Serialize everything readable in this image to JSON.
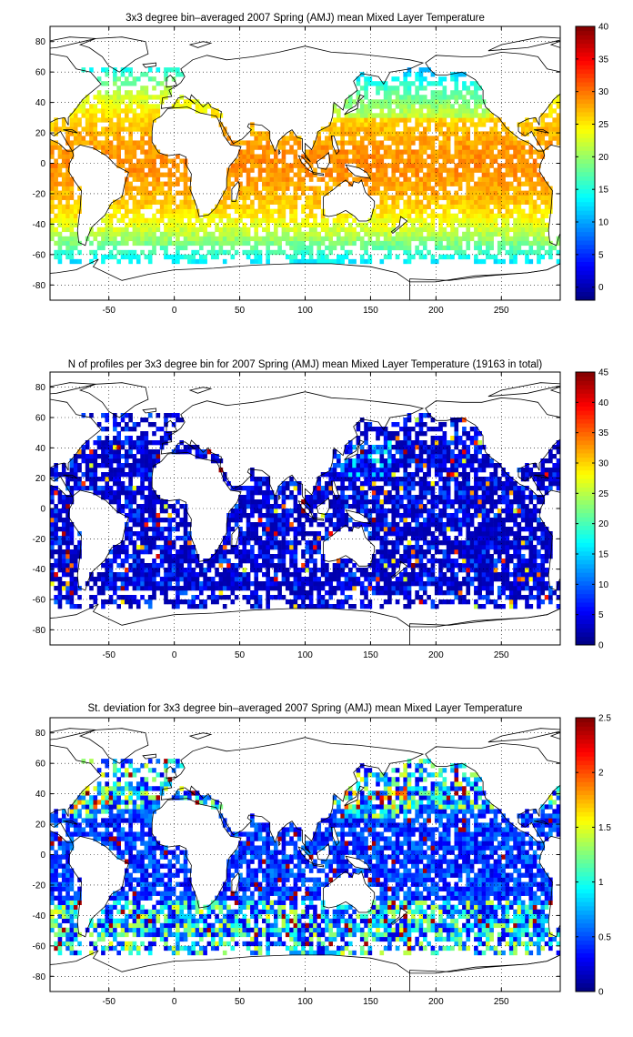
{
  "chart_data": [
    {
      "type": "heatmap",
      "title": "3x3 degree bin–averaged 2007 Spring (AMJ) mean Mixed Layer Temperature",
      "xlim": [
        -95,
        295
      ],
      "ylim": [
        -90,
        90
      ],
      "x_ticks": [
        -50,
        0,
        50,
        100,
        150,
        200,
        250
      ],
      "y_ticks": [
        80,
        60,
        40,
        20,
        0,
        -20,
        -40,
        -60,
        -80
      ],
      "grid": true,
      "colormap": "jet",
      "colorbar": {
        "min": -2,
        "max": 40,
        "ticks": [
          0,
          5,
          10,
          15,
          20,
          25,
          30,
          35,
          40
        ],
        "placement": "right"
      },
      "bin_size_deg": 3,
      "value_range": [
        -2,
        31
      ]
    },
    {
      "type": "heatmap",
      "title": "N of profiles per 3x3 degree bin for 2007 Spring (AMJ) mean Mixed Layer Temperature  (19163 in total)",
      "xlim": [
        -95,
        295
      ],
      "ylim": [
        -90,
        90
      ],
      "x_ticks": [
        -50,
        0,
        50,
        100,
        150,
        200,
        250
      ],
      "y_ticks": [
        80,
        60,
        40,
        20,
        0,
        -20,
        -40,
        -60,
        -80
      ],
      "grid": true,
      "colormap": "jet",
      "colorbar": {
        "min": 0,
        "max": 45,
        "ticks": [
          0,
          5,
          10,
          15,
          20,
          25,
          30,
          35,
          40,
          45
        ],
        "placement": "right"
      },
      "bin_size_deg": 3,
      "total_profiles": 19163,
      "value_range": [
        1,
        45
      ]
    },
    {
      "type": "heatmap",
      "title": "St. deviation for 3x3 degree bin–averaged 2007 Spring (AMJ) mean Mixed Layer Temperature",
      "xlim": [
        -95,
        295
      ],
      "ylim": [
        -90,
        90
      ],
      "x_ticks": [
        -50,
        0,
        50,
        100,
        150,
        200,
        250
      ],
      "y_ticks": [
        80,
        60,
        40,
        20,
        0,
        -20,
        -40,
        -60,
        -80
      ],
      "grid": true,
      "colormap": "jet",
      "colorbar": {
        "min": 0,
        "max": 2.5,
        "ticks": [
          0,
          0.5,
          1,
          1.5,
          2,
          2.5
        ],
        "placement": "right"
      },
      "bin_size_deg": 3,
      "value_range": [
        0,
        2.5
      ]
    }
  ]
}
